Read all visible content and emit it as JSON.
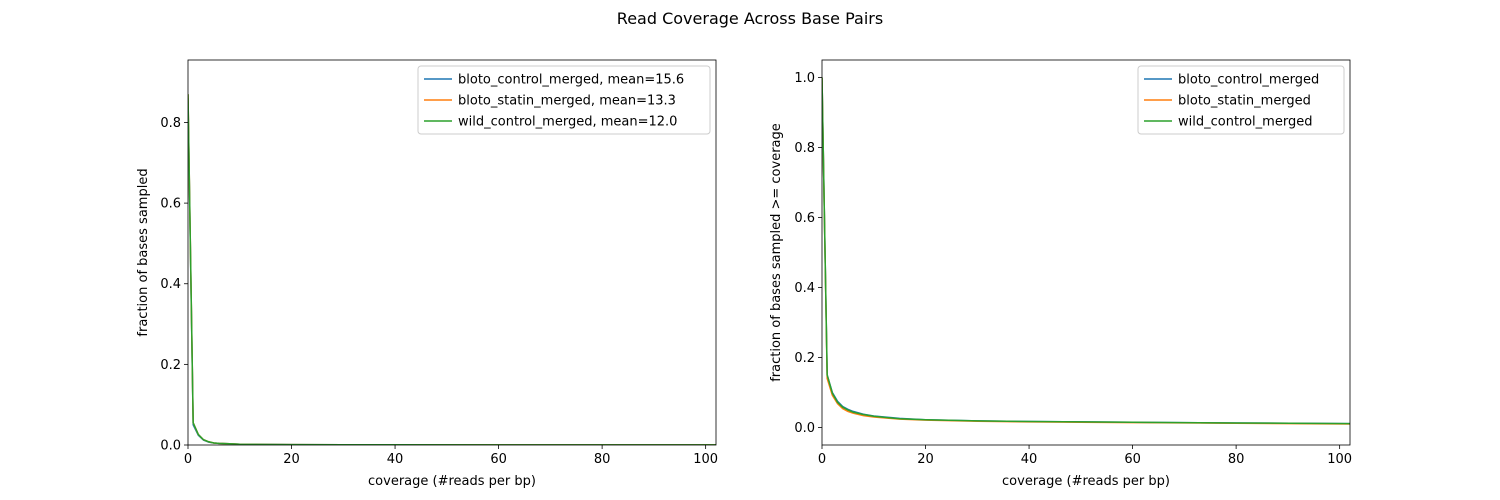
{
  "figure": {
    "title": "Read Coverage Across Base Pairs"
  },
  "chart_data": [
    {
      "type": "line",
      "xlabel": "coverage (#reads per bp)",
      "ylabel": "fraction of bases sampled",
      "xlim": [
        0,
        102
      ],
      "ylim": [
        0,
        0.955
      ],
      "xticks": [
        0,
        20,
        40,
        60,
        80,
        100
      ],
      "yticks": [
        0.0,
        0.2,
        0.4,
        0.6,
        0.8
      ],
      "ytick_labels": [
        "0.0",
        "0.2",
        "0.4",
        "0.6",
        "0.8"
      ],
      "legend_position": "upper-right",
      "x": [
        0,
        1,
        2,
        3,
        4,
        5,
        6,
        8,
        10,
        15,
        20,
        30,
        40,
        60,
        80,
        102
      ],
      "series": [
        {
          "name": "bloto_control_merged, mean=15.6",
          "color": "#1f77b4",
          "values": [
            0.86,
            0.05,
            0.024,
            0.012,
            0.007,
            0.005,
            0.004,
            0.003,
            0.002,
            0.0015,
            0.001,
            0.0007,
            0.0005,
            0.0004,
            0.0003,
            0.0002
          ]
        },
        {
          "name": "bloto_statin_merged, mean=13.3",
          "color": "#ff7f0e",
          "values": [
            0.87,
            0.055,
            0.026,
            0.013,
            0.008,
            0.005,
            0.004,
            0.003,
            0.002,
            0.0014,
            0.001,
            0.0007,
            0.0005,
            0.0003,
            0.0002,
            0.0002
          ]
        },
        {
          "name": "wild_control_merged, mean=12.0",
          "color": "#2ca02c",
          "values": [
            0.87,
            0.055,
            0.026,
            0.013,
            0.008,
            0.005,
            0.004,
            0.003,
            0.002,
            0.0014,
            0.001,
            0.0007,
            0.0005,
            0.0003,
            0.0002,
            0.0002
          ]
        }
      ]
    },
    {
      "type": "line",
      "xlabel": "coverage (#reads per bp)",
      "ylabel": "fraction of bases sampled >= coverage",
      "xlim": [
        0,
        102
      ],
      "ylim": [
        -0.05,
        1.05
      ],
      "xticks": [
        0,
        20,
        40,
        60,
        80,
        100
      ],
      "yticks": [
        0.0,
        0.2,
        0.4,
        0.6,
        0.8,
        1.0
      ],
      "ytick_labels": [
        "0.0",
        "0.2",
        "0.4",
        "0.6",
        "0.8",
        "1.0"
      ],
      "legend_position": "upper-right",
      "x": [
        0,
        1,
        2,
        3,
        4,
        5,
        6,
        8,
        10,
        15,
        20,
        30,
        40,
        60,
        80,
        102
      ],
      "series": [
        {
          "name": "bloto_control_merged",
          "color": "#1f77b4",
          "values": [
            1.0,
            0.15,
            0.1,
            0.075,
            0.06,
            0.052,
            0.046,
            0.038,
            0.033,
            0.026,
            0.022,
            0.019,
            0.017,
            0.015,
            0.013,
            0.011
          ]
        },
        {
          "name": "bloto_statin_merged",
          "color": "#ff7f0e",
          "values": [
            1.0,
            0.14,
            0.092,
            0.068,
            0.054,
            0.046,
            0.041,
            0.034,
            0.03,
            0.024,
            0.021,
            0.018,
            0.016,
            0.014,
            0.012,
            0.01
          ]
        },
        {
          "name": "wild_control_merged",
          "color": "#2ca02c",
          "values": [
            1.0,
            0.15,
            0.098,
            0.072,
            0.058,
            0.05,
            0.044,
            0.037,
            0.032,
            0.025,
            0.022,
            0.019,
            0.017,
            0.015,
            0.013,
            0.011
          ]
        }
      ]
    }
  ]
}
